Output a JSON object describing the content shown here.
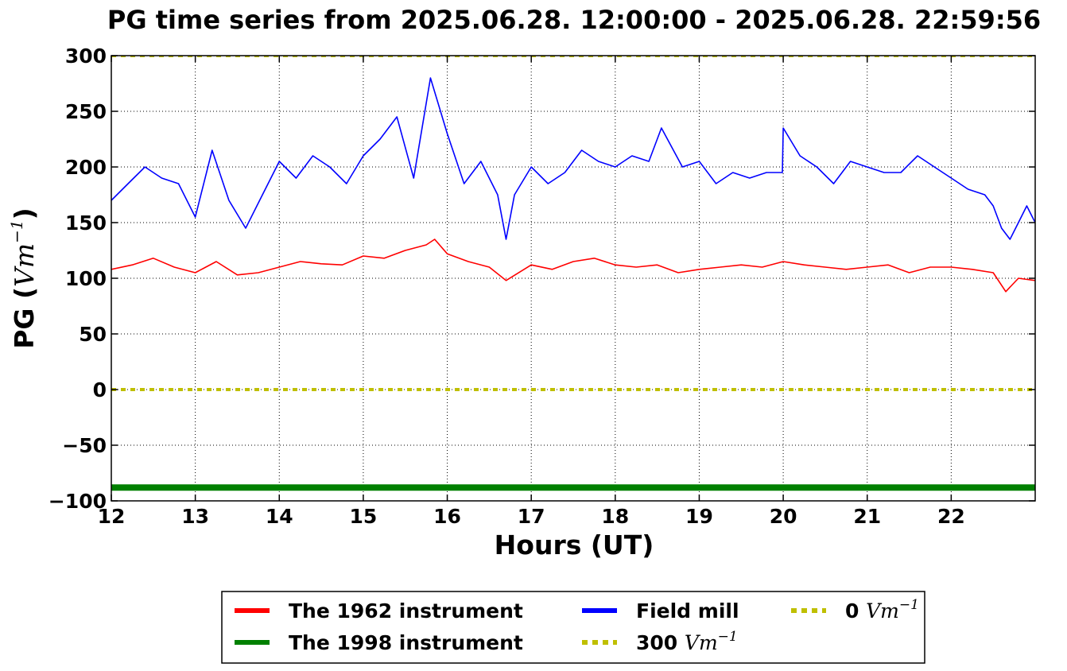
{
  "chart_data": {
    "type": "line",
    "title": "PG time series from 2025.06.28. 12:00:00 - 2025.06.28. 22:59:56",
    "xlabel": "Hours (UT)",
    "ylabel": "PG (",
    "ylabel_unit": "Vm",
    "ylabel_exp": "−1",
    "ylabel_close": ")",
    "xlim": [
      12,
      23
    ],
    "ylim": [
      -100,
      300
    ],
    "xticks": [
      12,
      13,
      14,
      15,
      16,
      17,
      18,
      19,
      20,
      21,
      22
    ],
    "xtick_labels": [
      "12",
      "13",
      "14",
      "15",
      "16",
      "17",
      "18",
      "19",
      "20",
      "21",
      "22"
    ],
    "yticks": [
      -100,
      -50,
      0,
      50,
      100,
      150,
      200,
      250,
      300
    ],
    "ytick_labels": [
      "−100",
      "−50",
      "0",
      "50",
      "100",
      "150",
      "200",
      "250",
      "300"
    ],
    "grid": true,
    "legend_position": "bottom-center",
    "series": [
      {
        "name": "The 1962 instrument",
        "color": "#ff0000",
        "style": "solid",
        "x": [
          12.0,
          12.25,
          12.5,
          12.75,
          13.0,
          13.25,
          13.5,
          13.75,
          14.0,
          14.25,
          14.5,
          14.75,
          15.0,
          15.25,
          15.5,
          15.75,
          15.85,
          16.0,
          16.25,
          16.5,
          16.7,
          17.0,
          17.25,
          17.5,
          17.75,
          18.0,
          18.25,
          18.5,
          18.75,
          19.0,
          19.25,
          19.5,
          19.75,
          20.0,
          20.25,
          20.5,
          20.75,
          21.0,
          21.25,
          21.5,
          21.75,
          22.0,
          22.25,
          22.5,
          22.65,
          22.8,
          23.0
        ],
        "values": [
          108,
          112,
          118,
          110,
          105,
          115,
          103,
          105,
          110,
          115,
          113,
          112,
          120,
          118,
          125,
          130,
          135,
          122,
          115,
          110,
          98,
          112,
          108,
          115,
          118,
          112,
          110,
          112,
          105,
          108,
          110,
          112,
          110,
          115,
          112,
          110,
          108,
          110,
          112,
          105,
          110,
          110,
          108,
          105,
          88,
          100,
          98
        ]
      },
      {
        "name": "The 1998 instrument",
        "color": "#008000",
        "style": "solid",
        "x": [
          12.0,
          23.0
        ],
        "values": [
          -88,
          -88
        ]
      },
      {
        "name": "Field mill",
        "color": "#0000ff",
        "style": "solid",
        "x": [
          12.0,
          12.2,
          12.4,
          12.6,
          12.8,
          13.0,
          13.2,
          13.4,
          13.6,
          13.8,
          14.0,
          14.2,
          14.4,
          14.6,
          14.8,
          15.0,
          15.2,
          15.4,
          15.6,
          15.8,
          16.0,
          16.2,
          16.4,
          16.6,
          16.7,
          16.8,
          17.0,
          17.2,
          17.4,
          17.6,
          17.8,
          18.0,
          18.2,
          18.4,
          18.55,
          18.8,
          19.0,
          19.2,
          19.4,
          19.6,
          19.8,
          19.99,
          20.0,
          20.2,
          20.4,
          20.6,
          20.8,
          21.0,
          21.2,
          21.4,
          21.6,
          21.8,
          22.0,
          22.2,
          22.4,
          22.5,
          22.6,
          22.7,
          22.8,
          22.9,
          23.0
        ],
        "values": [
          170,
          185,
          200,
          190,
          185,
          155,
          215,
          170,
          145,
          175,
          205,
          190,
          210,
          200,
          185,
          210,
          225,
          245,
          190,
          280,
          230,
          185,
          205,
          175,
          135,
          175,
          200,
          185,
          195,
          215,
          205,
          200,
          210,
          205,
          235,
          200,
          205,
          185,
          195,
          190,
          195,
          195,
          235,
          210,
          200,
          185,
          205,
          200,
          195,
          195,
          210,
          200,
          190,
          180,
          175,
          165,
          145,
          135,
          150,
          165,
          150
        ]
      },
      {
        "name": "300 Vm",
        "name_text": "300",
        "name_unit": "Vm",
        "name_exp": "−1",
        "color": "#bfbf00",
        "style": "dotted",
        "x": [
          12.0,
          23.0
        ],
        "values": [
          300,
          300
        ]
      },
      {
        "name": "0 Vm",
        "name_text": "0",
        "name_unit": "Vm",
        "name_exp": "−1",
        "color": "#bfbf00",
        "style": "dotted",
        "x": [
          12.0,
          23.0
        ],
        "values": [
          0,
          0
        ]
      }
    ]
  }
}
